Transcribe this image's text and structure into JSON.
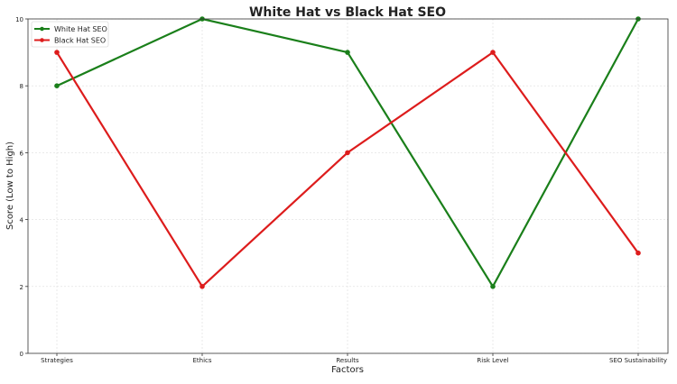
{
  "chart_data": {
    "type": "line",
    "title": "White Hat vs Black Hat SEO",
    "xlabel": "Factors",
    "ylabel": "Score (Low to High)",
    "categories": [
      "Strategies",
      "Ethics",
      "Results",
      "Risk Level",
      "SEO Sustainability"
    ],
    "ylim": [
      0,
      10
    ],
    "yticks": [
      "0",
      "2",
      "4",
      "6",
      "8",
      "10"
    ],
    "grid": true,
    "legend_position": "top-left",
    "series": [
      {
        "name": "White Hat SEO",
        "color": "#1a7f1a",
        "values": [
          8,
          10,
          9,
          2,
          10
        ]
      },
      {
        "name": "Black Hat SEO",
        "color": "#dd1c1c",
        "values": [
          9,
          2,
          6,
          9,
          3
        ]
      }
    ]
  }
}
